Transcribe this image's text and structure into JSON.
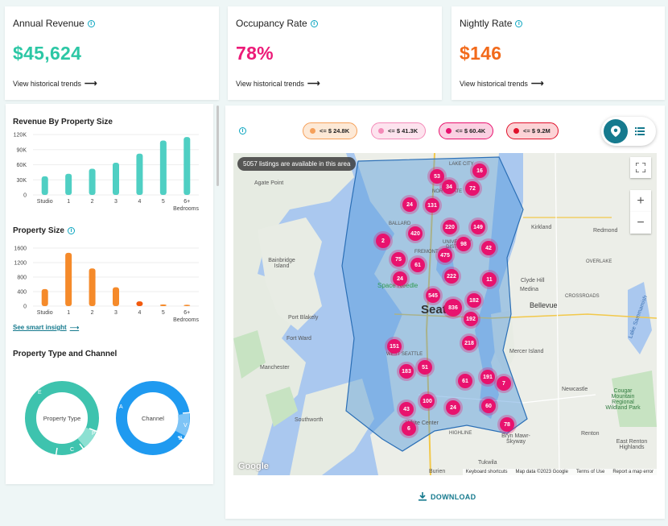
{
  "kpis": [
    {
      "title": "Annual Revenue",
      "value": "$45,624",
      "color": "#2cc7a5",
      "link": "View historical trends"
    },
    {
      "title": "Occupancy Rate",
      "value": "78%",
      "color": "#ec1a78",
      "link": "View historical trends"
    },
    {
      "title": "Nightly Rate",
      "value": "$146",
      "color": "#f26a1b",
      "link": "View historical trends"
    }
  ],
  "left": {
    "revenue_title": "Revenue By Property Size",
    "size_title": "Property Size",
    "smart_insight": "See smart insight",
    "type_title": "Property Type and Channel",
    "donut1_label": "Property Type",
    "donut2_label": "Channel",
    "donut1_letters": [
      "E",
      "P",
      "C"
    ],
    "donut2_letters": [
      "A",
      "V",
      "B"
    ]
  },
  "chart_data": [
    {
      "type": "bar",
      "title": "Revenue By Property Size",
      "categories": [
        "Studio",
        "1",
        "2",
        "3",
        "4",
        "5",
        "6+"
      ],
      "values": [
        37000,
        42000,
        52000,
        64000,
        82000,
        108000,
        115000
      ],
      "ylim": [
        0,
        120000
      ],
      "yticks": [
        "0",
        "30K",
        "60K",
        "90K",
        "120K"
      ],
      "xlabel": "Bedrooms",
      "color": "#4fcfc3"
    },
    {
      "type": "bar",
      "title": "Property Size",
      "categories": [
        "Studio",
        "1",
        "2",
        "3",
        "4",
        "5",
        "6+"
      ],
      "values": [
        470,
        1470,
        1040,
        520,
        130,
        45,
        35
      ],
      "ylim": [
        0,
        1600
      ],
      "yticks": [
        "0",
        "400",
        "800",
        "1200",
        "1600"
      ],
      "xlabel": "Bedrooms",
      "color": "#f58a2a",
      "highlight_color": "#f25a0e",
      "highlight_index": 4
    }
  ],
  "legend_chips": [
    {
      "label": "<= $ 24.8K",
      "dot": "#f5a05a",
      "bg": "#fde9d6",
      "border": "#f5a05a"
    },
    {
      "label": "<= $ 41.3K",
      "dot": "#f48ab8",
      "bg": "#fde3ee",
      "border": "#f48ab8"
    },
    {
      "label": "<= $ 60.4K",
      "dot": "#e8126e",
      "bg": "#fbd0e2",
      "border": "#e8126e"
    },
    {
      "label": "<= $ 9.2M",
      "dot": "#e0102a",
      "bg": "#fcd3d6",
      "border": "#e0102a"
    }
  ],
  "map": {
    "listings_message": "5057 listings are available in this area",
    "markers": [
      "53",
      "16",
      "34",
      "72",
      "24",
      "131",
      "220",
      "149",
      "2",
      "420",
      "98",
      "42",
      "75",
      "61",
      "475",
      "24",
      "222",
      "11",
      "545",
      "836",
      "182",
      "192",
      "218",
      "151",
      "183",
      "51",
      "61",
      "191",
      "7",
      "100",
      "24",
      "60",
      "43",
      "6",
      "78"
    ],
    "places": [
      "Agate Point",
      "Bainbridge Island",
      "Port Blakely",
      "Fort Ward",
      "Manchester",
      "Southworth",
      "Kirkland",
      "Redmond",
      "Clyde Hill",
      "Medina",
      "Bellevue",
      "Mercer Island",
      "Newcastle",
      "Cougar Mountain Regional Wildland Park",
      "Renton",
      "White Center",
      "Burien",
      "Tukwila",
      "Bryn Mawr-Skyway",
      "East Renton Highlands",
      "BALLARD",
      "FREMONT",
      "WEST SEATTLE",
      "LAKE CITY",
      "NORTHGATE",
      "UNIVERSITY DISTRICT",
      "OVERLAKE",
      "CROSSROADS",
      "HIGHLINE",
      "Lake Sammamish",
      "Space Needle"
    ],
    "city": "Seattle",
    "attribution": [
      "Keyboard shortcuts",
      "Map data ©2023 Google",
      "Terms of Use",
      "Report a map error"
    ],
    "google": "Google"
  },
  "download_label": "DOWNLOAD"
}
